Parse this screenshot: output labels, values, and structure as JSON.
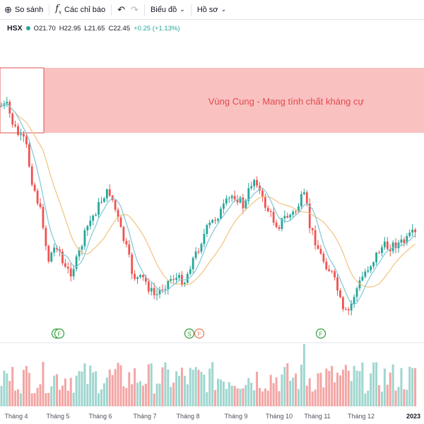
{
  "toolbar": {
    "compare_label": "So sánh",
    "indicators_label": "Các chỉ báo",
    "chart_type_label": "Biểu đồ",
    "profile_label": "Hồ sơ"
  },
  "legend": {
    "symbol": "HSX",
    "open": "O21.70",
    "high": "H22.95",
    "low": "L21.65",
    "close": "C22.45",
    "change": "+0.25 (+1.13%)"
  },
  "zone": {
    "label": "Vùng Cung - Mang tính chất kháng cự",
    "fill_color": "#f9b6b6",
    "text_color": "#e04b4b"
  },
  "markers": [
    "F",
    "F",
    "S",
    "F",
    "F"
  ],
  "colors": {
    "up": "#26a69a",
    "down": "#ef5350",
    "ma_fast": "#7fc7d6",
    "ma_slow": "#f2c37e",
    "vol_up": "#9fd6cf",
    "vol_down": "#f3a5a4"
  },
  "chart_data": {
    "type": "candlestick",
    "x_labels": [
      "Tháng 4",
      "Tháng 5",
      "Tháng 6",
      "Tháng 7",
      "Tháng 8",
      "Tháng 9",
      "Tháng 10",
      "Tháng 11",
      "Tháng 12",
      "2023"
    ],
    "series": [
      {
        "name": "price",
        "kind": "candle"
      },
      {
        "name": "MA fast",
        "kind": "line"
      },
      {
        "name": "MA slow",
        "kind": "line"
      },
      {
        "name": "volume",
        "kind": "bar"
      }
    ]
  }
}
